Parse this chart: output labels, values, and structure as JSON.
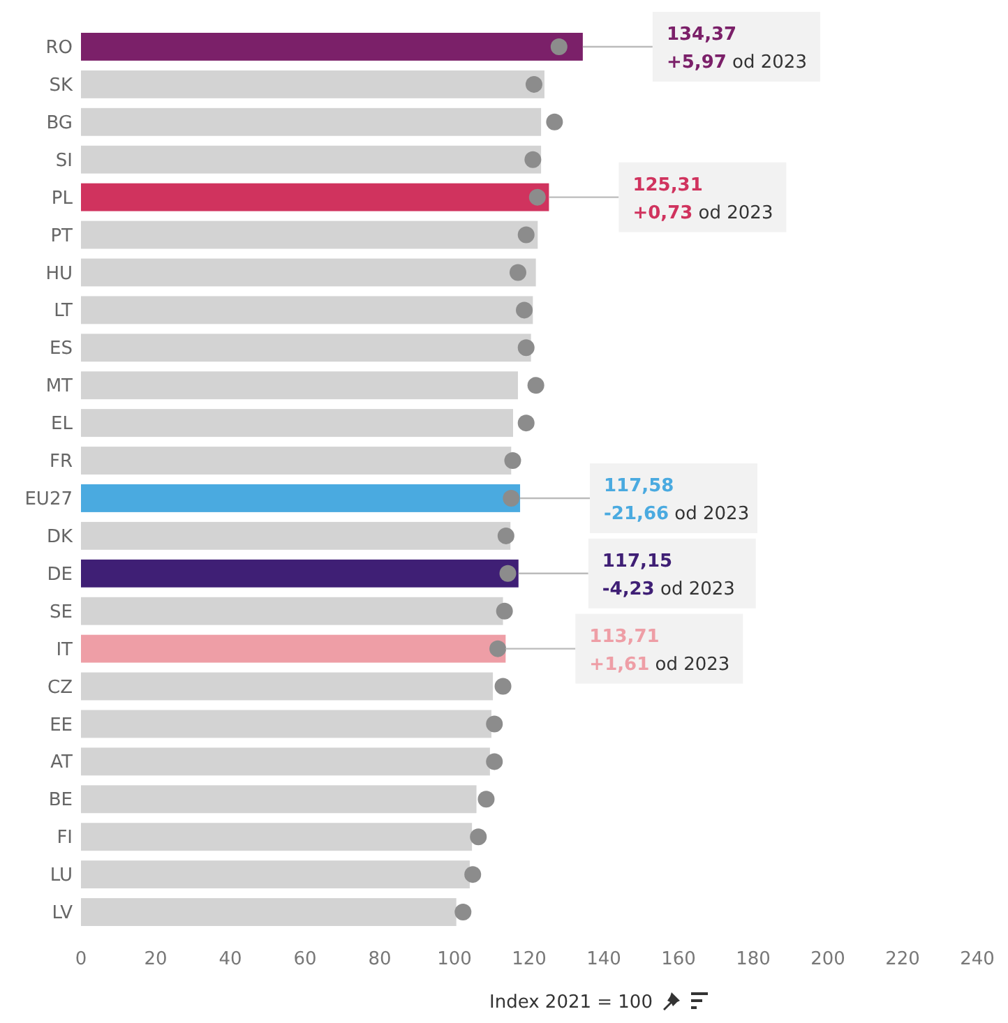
{
  "chart_data": {
    "type": "bar",
    "orientation": "horizontal",
    "xlabel": "Index 2021 = 100",
    "categories": [
      "RO",
      "SK",
      "BG",
      "SI",
      "PL",
      "PT",
      "HU",
      "LT",
      "ES",
      "MT",
      "EL",
      "FR",
      "EU27",
      "DK",
      "DE",
      "SE",
      "IT",
      "CZ",
      "EE",
      "AT",
      "BE",
      "FI",
      "LU",
      "LV"
    ],
    "series": [
      {
        "type": "bar",
        "colors": [
          "#7b2069",
          "#d3d3d3",
          "#d3d3d3",
          "#d3d3d3",
          "#d0335e",
          "#d3d3d3",
          "#d3d3d3",
          "#d3d3d3",
          "#d3d3d3",
          "#d3d3d3",
          "#d3d3d3",
          "#d3d3d3",
          "#4aaae0",
          "#d3d3d3",
          "#3f1f75",
          "#d3d3d3",
          "#ee9ea6",
          "#d3d3d3",
          "#d3d3d3",
          "#d3d3d3",
          "#d3d3d3",
          "#d3d3d3",
          "#d3d3d3",
          "#d3d3d3"
        ],
        "values": [
          134.37,
          124.1,
          123.2,
          123.2,
          125.31,
          122.3,
          121.8,
          121.0,
          120.5,
          117.0,
          115.7,
          115.2,
          117.58,
          115.0,
          117.15,
          113.0,
          113.71,
          110.3,
          109.9,
          109.5,
          105.9,
          104.7,
          104.1,
          100.5
        ]
      },
      {
        "type": "scatter",
        "color": "#8c8c8c",
        "values": [
          128.0,
          121.3,
          126.8,
          121.0,
          122.2,
          119.2,
          117.0,
          118.7,
          119.2,
          121.8,
          119.2,
          115.6,
          115.2,
          113.8,
          114.3,
          113.4,
          111.6,
          113.0,
          110.7,
          110.7,
          108.5,
          106.4,
          104.9,
          102.3
        ]
      }
    ],
    "xlim": [
      0,
      240
    ],
    "xticks": [
      0,
      20,
      40,
      60,
      80,
      100,
      120,
      140,
      160,
      180,
      200,
      220,
      240
    ],
    "annotations": [
      {
        "text": "134,37\n+5,97 od 2023",
        "x": 134.37,
        "y": "RO"
      },
      {
        "text": "125,31\n+0,73 od 2023",
        "x": 125.31,
        "y": "PL"
      },
      {
        "text": "117,58\n-21,66 od 2023",
        "x": 117.58,
        "y": "EU27"
      },
      {
        "text": "117,15\n-4,23 od 2023",
        "x": 117.15,
        "y": "DE"
      },
      {
        "text": "113,71\n+1,61 od 2023",
        "x": 113.71,
        "y": "IT"
      }
    ]
  }
}
